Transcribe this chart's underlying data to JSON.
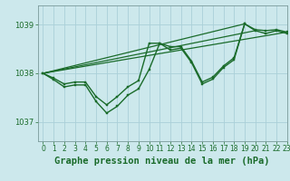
{
  "title": "Graphe pression niveau de la mer (hPa)",
  "background_color": "#cce8ec",
  "grid_color": "#aad0d8",
  "line_color": "#1a6b2a",
  "xlim": [
    -0.5,
    23
  ],
  "ylim": [
    1036.6,
    1039.4
  ],
  "yticks": [
    1037,
    1038,
    1039
  ],
  "xticks": [
    0,
    1,
    2,
    3,
    4,
    5,
    6,
    7,
    8,
    9,
    10,
    11,
    12,
    13,
    14,
    15,
    16,
    17,
    18,
    19,
    20,
    21,
    22,
    23
  ],
  "series": [
    {
      "x": [
        0,
        1,
        2,
        3,
        4,
        5,
        6,
        7,
        8,
        9,
        10,
        11,
        12,
        13,
        14,
        15,
        16,
        17,
        18,
        19,
        20,
        21,
        22,
        23
      ],
      "y": [
        1038.0,
        1037.87,
        1037.72,
        1037.76,
        1037.76,
        1037.42,
        1037.18,
        1037.32,
        1037.55,
        1037.68,
        1038.08,
        1038.62,
        1038.48,
        1038.52,
        1038.22,
        1037.78,
        1037.88,
        1038.12,
        1038.28,
        1039.02,
        1038.88,
        1038.82,
        1038.88,
        1038.82
      ],
      "marker": true,
      "linewidth": 1.0
    },
    {
      "x": [
        0,
        1,
        2,
        3,
        4,
        5,
        6,
        7,
        8,
        9,
        10,
        11,
        12,
        13,
        14,
        15,
        16,
        17,
        18,
        19,
        20,
        21,
        22,
        23
      ],
      "y": [
        1038.0,
        1037.9,
        1037.78,
        1037.82,
        1037.82,
        1037.52,
        1037.35,
        1037.52,
        1037.72,
        1037.85,
        1038.62,
        1038.62,
        1038.55,
        1038.55,
        1038.25,
        1037.82,
        1037.92,
        1038.15,
        1038.32,
        1039.02,
        1038.9,
        1038.88,
        1038.9,
        1038.85
      ],
      "marker": true,
      "linewidth": 1.0
    },
    {
      "x": [
        0,
        23
      ],
      "y": [
        1038.0,
        1038.85
      ],
      "marker": false,
      "linewidth": 0.9
    },
    {
      "x": [
        0,
        19
      ],
      "y": [
        1038.0,
        1039.02
      ],
      "marker": false,
      "linewidth": 0.9
    },
    {
      "x": [
        0,
        20
      ],
      "y": [
        1038.0,
        1038.88
      ],
      "marker": false,
      "linewidth": 0.9
    }
  ],
  "title_fontsize": 7.5,
  "tick_fontsize": 6.0,
  "xtick_fontsize": 5.5,
  "title_color": "#1a6b2a",
  "tick_color": "#1a6b2a",
  "spine_color": "#7a9a9a"
}
